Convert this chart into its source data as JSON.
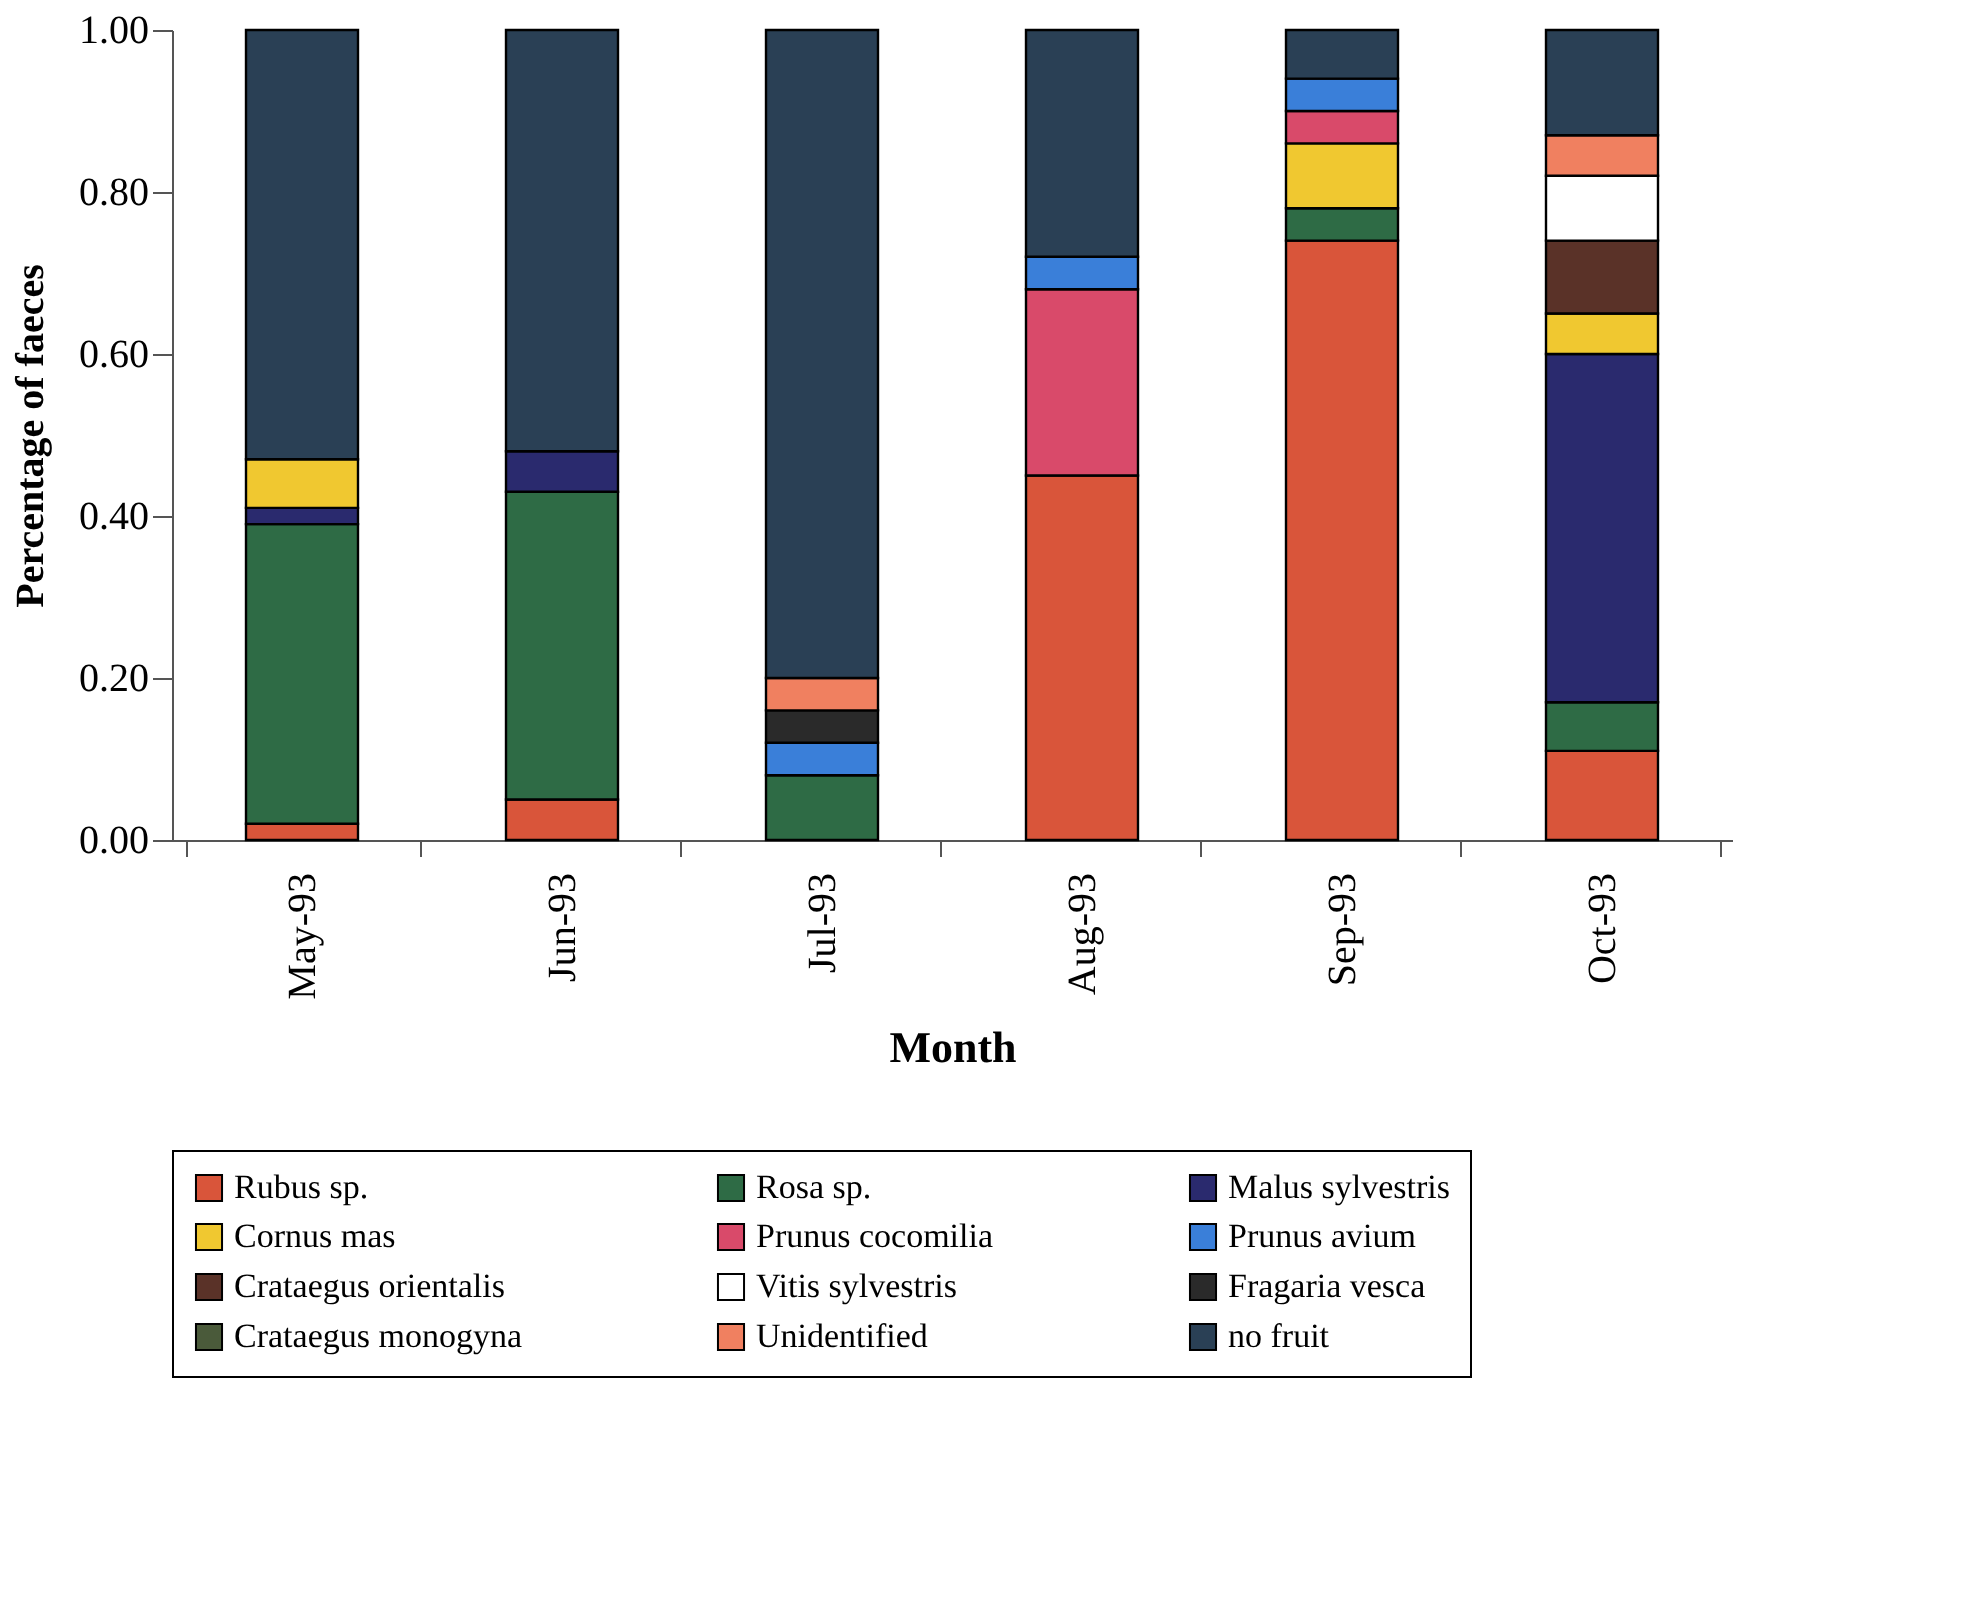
{
  "chart_data": {
    "type": "bar",
    "stacked": true,
    "xlabel": "Month",
    "ylabel": "Percentage of faeces",
    "categories": [
      "May-93",
      "Jun-93",
      "Jul-93",
      "Aug-93",
      "Sep-93",
      "Oct-93"
    ],
    "ylim": [
      0,
      1
    ],
    "yticks": [
      {
        "value": 0,
        "label": "0.00"
      },
      {
        "value": 0.2,
        "label": "0.20"
      },
      {
        "value": 0.4,
        "label": "0.40"
      },
      {
        "value": 0.6,
        "label": "0.60"
      },
      {
        "value": 0.8,
        "label": "0.80"
      },
      {
        "value": 1,
        "label": "1.00"
      }
    ],
    "grid": false,
    "legend": "bottom",
    "series": [
      {
        "name": "Rubus sp.",
        "color": "#d9553a",
        "values": [
          0.02,
          0.05,
          null,
          0.45,
          0.74,
          0.11
        ]
      },
      {
        "name": "Rosa sp.",
        "color": "#2e6b45",
        "values": [
          0.37,
          0.38,
          0.08,
          null,
          0.04,
          0.06
        ]
      },
      {
        "name": "Malus sylvestris",
        "color": "#2a2a6e",
        "values": [
          0.02,
          0.05,
          null,
          null,
          null,
          0.43
        ]
      },
      {
        "name": "Cornus mas",
        "color": "#f0c830",
        "values": [
          0.06,
          null,
          null,
          null,
          0.08,
          0.05
        ]
      },
      {
        "name": "Prunus cocomilia",
        "color": "#d94a6a",
        "values": [
          null,
          null,
          null,
          0.23,
          0.04,
          null
        ]
      },
      {
        "name": "Prunus avium",
        "color": "#3a7fd9",
        "values": [
          null,
          null,
          0.04,
          0.04,
          0.04,
          null
        ]
      },
      {
        "name": "Crataegus orientalis",
        "color": "#5a3228",
        "values": [
          null,
          null,
          null,
          null,
          null,
          0.09
        ]
      },
      {
        "name": "Vitis sylvestris",
        "color": "#ffffff",
        "values": [
          null,
          null,
          null,
          null,
          null,
          0.08
        ]
      },
      {
        "name": "Fragaria vesca",
        "color": "#2a2a2a",
        "values": [
          null,
          null,
          0.04,
          null,
          null,
          null
        ]
      },
      {
        "name": "Crataegus monogyna",
        "color": "#4a5a3a",
        "values": [
          null,
          null,
          null,
          null,
          null,
          null
        ]
      },
      {
        "name": "Unidentified",
        "color": "#f08060",
        "values": [
          null,
          null,
          0.04,
          null,
          null,
          0.05
        ]
      },
      {
        "name": "no fruit",
        "color": "#2a4055",
        "values": [
          0.53,
          0.52,
          0.8,
          0.28,
          0.06,
          0.13
        ]
      }
    ]
  }
}
